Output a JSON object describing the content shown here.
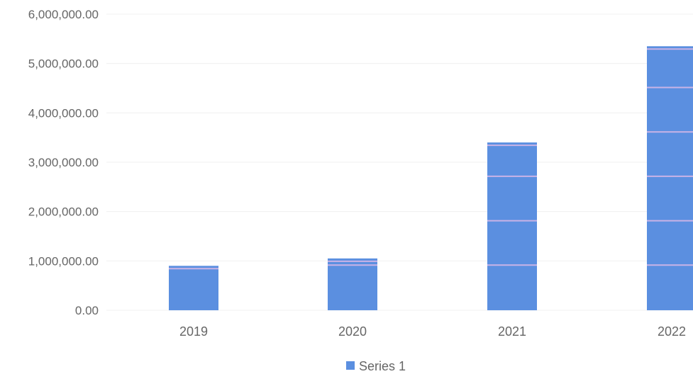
{
  "chart_data": {
    "type": "bar",
    "title": "",
    "xlabel": "",
    "ylabel": "",
    "categories": [
      "2019",
      "2020",
      "2021",
      "2022"
    ],
    "series": [
      {
        "name": "Series 1",
        "values": [
          900000,
          1050000,
          3400000,
          5350000
        ]
      }
    ],
    "ylim": [
      0,
      6000000
    ],
    "y_ticks": [
      0,
      1000000,
      2000000,
      3000000,
      4000000,
      5000000,
      6000000
    ],
    "y_tick_labels": [
      "0.00",
      "1,000,000.00",
      "2,000,000.00",
      "3,000,000.00",
      "4,000,000.00",
      "5,000,000.00",
      "6,000,000.00"
    ],
    "grid": true,
    "legend": "bottom",
    "colors": {
      "bar": "#5b8fe0",
      "bar_stripe": "#c9b3e6",
      "gridline": "#f0f0f0",
      "text": "#666666"
    }
  }
}
